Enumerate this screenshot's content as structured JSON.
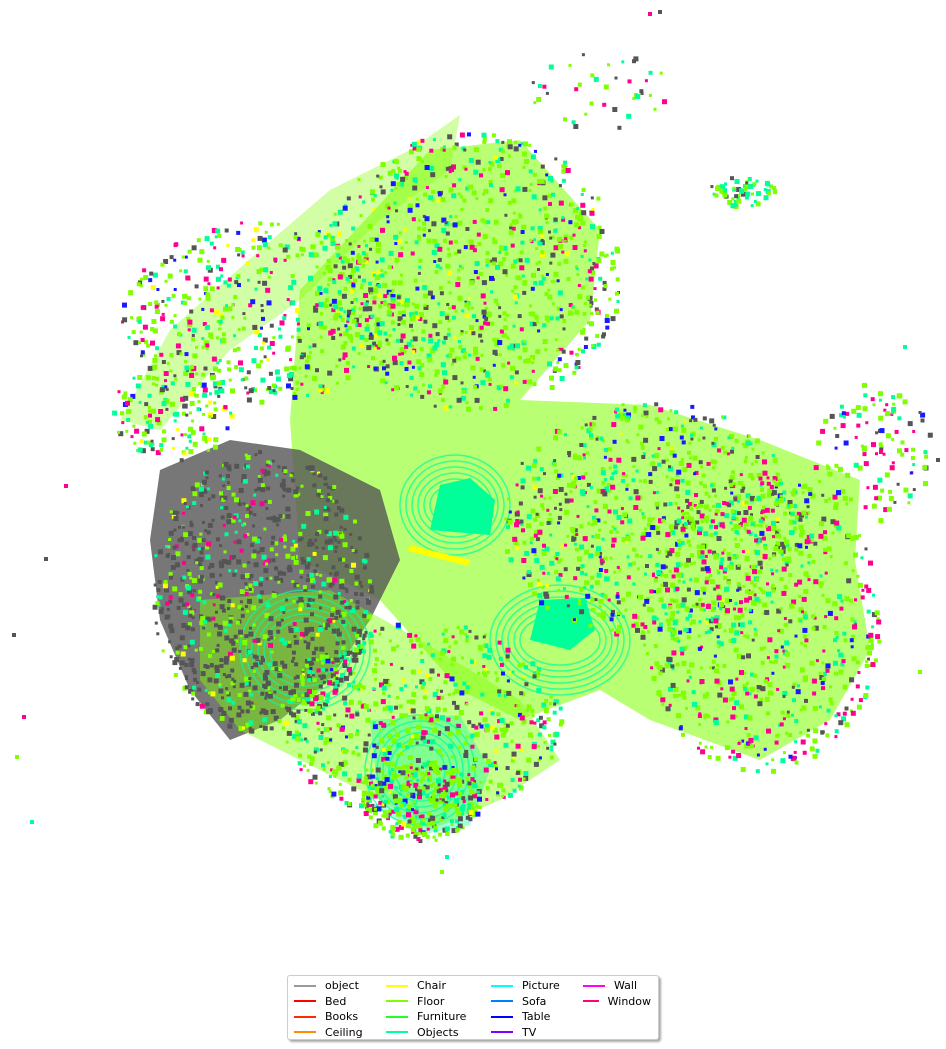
{
  "legend": {
    "items": [
      {
        "label": "object",
        "color": "#999999"
      },
      {
        "label": "Bed",
        "color": "#ff0000"
      },
      {
        "label": "Books",
        "color": "#ff2a00"
      },
      {
        "label": "Ceiling",
        "color": "#ff8c00"
      },
      {
        "label": "Chair",
        "color": "#ffff00"
      },
      {
        "label": "Floor",
        "color": "#80ff00"
      },
      {
        "label": "Furniture",
        "color": "#20ff20"
      },
      {
        "label": "Objects",
        "color": "#00ff99"
      },
      {
        "label": "Picture",
        "color": "#00ffff"
      },
      {
        "label": "Sofa",
        "color": "#0080ff"
      },
      {
        "label": "Table",
        "color": "#0000ff"
      },
      {
        "label": "TV",
        "color": "#8000ff"
      },
      {
        "label": "Wall",
        "color": "#ff00ff"
      },
      {
        "label": "Window",
        "color": "#ff0080"
      }
    ]
  },
  "point_colors": {
    "object": "#555555",
    "floor": "#7fff00",
    "objects": "#00ff99",
    "window": "#ff0090",
    "table": "#1a1aff",
    "chair": "#ffff00",
    "furniture": "#33ff33"
  }
}
